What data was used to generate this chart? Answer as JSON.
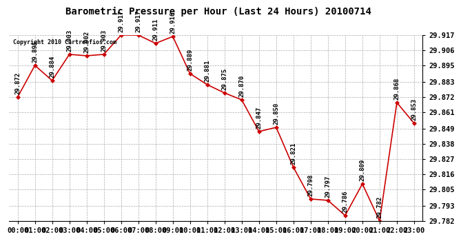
{
  "title": "Barometric Pressure per Hour (Last 24 Hours) 20100714",
  "copyright": "Copyright 2010 Cartreefios.com",
  "hours": [
    "00:00",
    "01:00",
    "02:00",
    "03:00",
    "04:00",
    "05:00",
    "06:00",
    "07:00",
    "08:00",
    "09:00",
    "10:00",
    "11:00",
    "12:00",
    "13:00",
    "14:00",
    "15:00",
    "16:00",
    "17:00",
    "18:00",
    "19:00",
    "20:00",
    "21:00",
    "22:00",
    "23:00"
  ],
  "values": [
    29.872,
    29.895,
    29.884,
    29.903,
    29.902,
    29.903,
    29.917,
    29.917,
    29.911,
    29.916,
    29.889,
    29.881,
    29.875,
    29.87,
    29.847,
    29.85,
    29.821,
    29.798,
    29.797,
    29.786,
    29.809,
    29.782,
    29.868,
    29.853
  ],
  "ylim_min": 29.782,
  "ylim_max": 29.917,
  "yticks": [
    29.782,
    29.793,
    29.805,
    29.816,
    29.827,
    29.838,
    29.849,
    29.861,
    29.872,
    29.883,
    29.895,
    29.906,
    29.917
  ],
  "line_color": "#cc0000",
  "marker_color": "#cc0000",
  "bg_color": "#ffffff",
  "grid_color": "#aaaaaa",
  "label_rotation": 90,
  "label_fontsize": 6.5,
  "tick_fontsize": 7.5,
  "title_fontsize": 10
}
